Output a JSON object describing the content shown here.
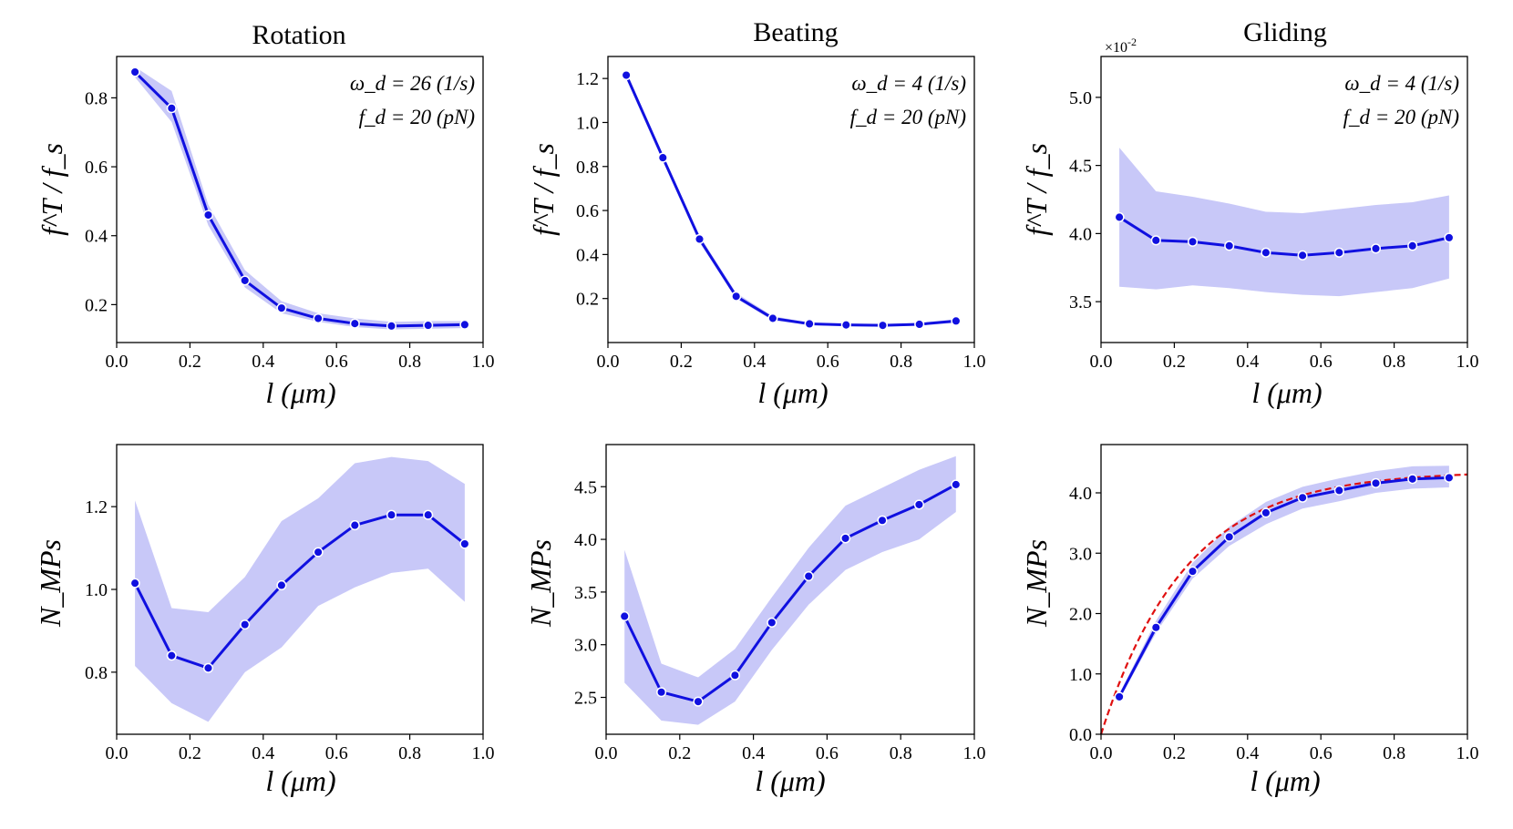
{
  "chart_data": [
    {
      "type": "line",
      "title": "Rotation",
      "xlabel": "l (μm)",
      "ylabel": "f^T / f_s",
      "annotations": [
        "ω_d = 26 (1/s)",
        "f_d = 20 (pN)"
      ],
      "x": [
        0.05,
        0.15,
        0.25,
        0.35,
        0.45,
        0.55,
        0.65,
        0.75,
        0.85,
        0.95
      ],
      "values": [
        0.875,
        0.77,
        0.46,
        0.27,
        0.19,
        0.16,
        0.145,
        0.138,
        0.14,
        0.142
      ],
      "lower": [
        0.86,
        0.73,
        0.43,
        0.25,
        0.175,
        0.15,
        0.135,
        0.128,
        0.13,
        0.132
      ],
      "upper": [
        0.89,
        0.82,
        0.49,
        0.3,
        0.21,
        0.175,
        0.16,
        0.15,
        0.152,
        0.152
      ],
      "xlim": [
        0,
        1
      ],
      "ylim": [
        0.09,
        0.92
      ],
      "xticks": [
        "0.0",
        "0.2",
        "0.4",
        "0.6",
        "0.8",
        "1.0"
      ],
      "yticks": [
        "0.2",
        "0.4",
        "0.6",
        "0.8"
      ],
      "yticks_values": [
        0.2,
        0.4,
        0.6,
        0.8
      ]
    },
    {
      "type": "line",
      "title": "Beating",
      "xlabel": "l (μm)",
      "ylabel": "f^T / f_s",
      "annotations": [
        "ω_d = 4 (1/s)",
        "f_d = 20 (pN)"
      ],
      "x": [
        0.05,
        0.15,
        0.25,
        0.35,
        0.45,
        0.55,
        0.65,
        0.75,
        0.85,
        0.95
      ],
      "values": [
        1.215,
        0.84,
        0.47,
        0.21,
        0.11,
        0.085,
        0.08,
        0.078,
        0.083,
        0.098
      ],
      "lower": [
        1.2,
        0.83,
        0.455,
        0.2,
        0.1,
        0.08,
        0.074,
        0.072,
        0.077,
        0.09
      ],
      "upper": [
        1.23,
        0.85,
        0.485,
        0.225,
        0.12,
        0.09,
        0.086,
        0.084,
        0.089,
        0.106
      ],
      "xlim": [
        0,
        1
      ],
      "ylim": [
        0.0,
        1.3
      ],
      "xticks": [
        "0.0",
        "0.2",
        "0.4",
        "0.6",
        "0.8",
        "1.0"
      ],
      "yticks": [
        "0.2",
        "0.4",
        "0.6",
        "0.8",
        "1.0",
        "1.2"
      ],
      "yticks_values": [
        0.2,
        0.4,
        0.6,
        0.8,
        1.0,
        1.2
      ]
    },
    {
      "type": "line",
      "title": "Gliding",
      "xlabel": "l (μm)",
      "ylabel": "f^T / f_s",
      "multiplier": "×10",
      "multiplier_exp": "-2",
      "annotations": [
        "ω_d = 4 (1/s)",
        "f_d = 20 (pN)"
      ],
      "x": [
        0.05,
        0.15,
        0.25,
        0.35,
        0.45,
        0.55,
        0.65,
        0.75,
        0.85,
        0.95
      ],
      "values": [
        4.12,
        3.95,
        3.94,
        3.91,
        3.86,
        3.84,
        3.86,
        3.89,
        3.91,
        3.97
      ],
      "lower": [
        3.61,
        3.59,
        3.62,
        3.6,
        3.57,
        3.55,
        3.54,
        3.57,
        3.6,
        3.67
      ],
      "upper": [
        4.63,
        4.31,
        4.27,
        4.22,
        4.16,
        4.15,
        4.18,
        4.21,
        4.23,
        4.28
      ],
      "xlim": [
        0,
        1
      ],
      "ylim": [
        3.2,
        5.3
      ],
      "xticks": [
        "0.0",
        "0.2",
        "0.4",
        "0.6",
        "0.8",
        "1.0"
      ],
      "yticks": [
        "3.5",
        "4.0",
        "4.5",
        "5.0"
      ],
      "yticks_values": [
        3.5,
        4.0,
        4.5,
        5.0
      ]
    },
    {
      "type": "line",
      "title": "",
      "xlabel": "l (μm)",
      "ylabel": "N_MPs",
      "x": [
        0.05,
        0.15,
        0.25,
        0.35,
        0.45,
        0.55,
        0.65,
        0.75,
        0.85,
        0.95
      ],
      "values": [
        1.015,
        0.84,
        0.81,
        0.915,
        1.01,
        1.09,
        1.155,
        1.18,
        1.18,
        1.11
      ],
      "lower": [
        0.815,
        0.725,
        0.68,
        0.8,
        0.86,
        0.96,
        1.005,
        1.04,
        1.05,
        0.97
      ],
      "upper": [
        1.215,
        0.955,
        0.945,
        1.03,
        1.165,
        1.22,
        1.305,
        1.32,
        1.31,
        1.255
      ],
      "xlim": [
        0,
        1
      ],
      "ylim": [
        0.65,
        1.35
      ],
      "xticks": [
        "0.0",
        "0.2",
        "0.4",
        "0.6",
        "0.8",
        "1.0"
      ],
      "yticks": [
        "0.8",
        "1.0",
        "1.2"
      ],
      "yticks_values": [
        0.8,
        1.0,
        1.2
      ]
    },
    {
      "type": "line",
      "title": "",
      "xlabel": "l (μm)",
      "ylabel": "N_MPs",
      "x": [
        0.05,
        0.15,
        0.25,
        0.35,
        0.45,
        0.55,
        0.65,
        0.75,
        0.85,
        0.95
      ],
      "values": [
        3.27,
        2.55,
        2.46,
        2.71,
        3.21,
        3.65,
        4.01,
        4.18,
        4.33,
        4.52
      ],
      "lower": [
        2.64,
        2.28,
        2.24,
        2.46,
        2.95,
        3.38,
        3.71,
        3.88,
        4.0,
        4.26
      ],
      "upper": [
        3.9,
        2.82,
        2.69,
        2.96,
        3.45,
        3.92,
        4.32,
        4.49,
        4.66,
        4.79
      ],
      "xlim": [
        0,
        1
      ],
      "ylim": [
        2.15,
        4.9
      ],
      "xticks": [
        "0.0",
        "0.2",
        "0.4",
        "0.6",
        "0.8",
        "1.0"
      ],
      "yticks": [
        "2.5",
        "3.0",
        "3.5",
        "4.0",
        "4.5"
      ],
      "yticks_values": [
        2.5,
        3.0,
        3.5,
        4.0,
        4.5
      ]
    },
    {
      "type": "line",
      "title": "",
      "xlabel": "l (μm)",
      "ylabel": "N_MPs",
      "x": [
        0.05,
        0.15,
        0.25,
        0.35,
        0.45,
        0.55,
        0.65,
        0.75,
        0.85,
        0.95
      ],
      "values": [
        0.62,
        1.77,
        2.7,
        3.27,
        3.67,
        3.92,
        4.04,
        4.16,
        4.23,
        4.25
      ],
      "lower": [
        0.58,
        1.68,
        2.58,
        3.12,
        3.48,
        3.74,
        3.86,
        4.0,
        4.07,
        4.09
      ],
      "upper": [
        0.67,
        1.88,
        2.84,
        3.44,
        3.85,
        4.1,
        4.24,
        4.36,
        4.44,
        4.45
      ],
      "fit": {
        "label": "exponential fit",
        "asymptote": 4.36,
        "x0": 0.0,
        "scale": 0.23
      },
      "xlim": [
        0,
        1
      ],
      "ylim": [
        0.0,
        4.8
      ],
      "xticks": [
        "0.0",
        "0.2",
        "0.4",
        "0.6",
        "0.8",
        "1.0"
      ],
      "yticks": [
        "0.0",
        "1.0",
        "2.0",
        "3.0",
        "4.0"
      ],
      "yticks_values": [
        0.0,
        1.0,
        2.0,
        3.0,
        4.0
      ]
    }
  ],
  "colors": {
    "series": "#1010e0",
    "band": "#c8c8f8",
    "fit": "#e01010"
  }
}
